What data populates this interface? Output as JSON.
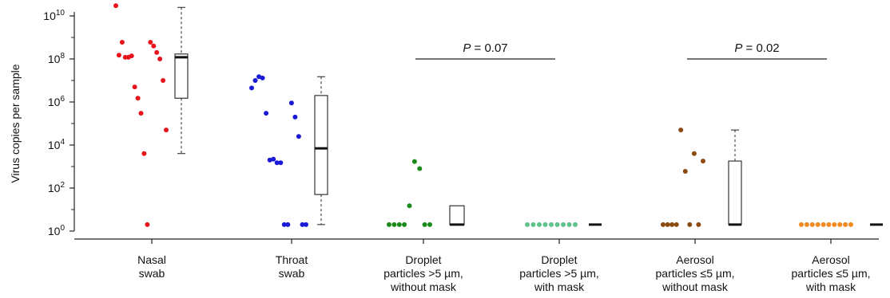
{
  "chart_data": {
    "type": "scatter",
    "ylabel": "Virus copies per sample",
    "yscale": "log10",
    "ylim": [
      1,
      10000000000
    ],
    "yticks": [
      {
        "value": 1,
        "base": "10",
        "exp": "0"
      },
      {
        "value": 100,
        "base": "10",
        "exp": "2"
      },
      {
        "value": 10000,
        "base": "10",
        "exp": "4"
      },
      {
        "value": 1000000,
        "base": "10",
        "exp": "6"
      },
      {
        "value": 100000000,
        "base": "10",
        "exp": "8"
      },
      {
        "value": 10000000000,
        "base": "10",
        "exp": "10"
      }
    ],
    "grid": false,
    "categories": [
      {
        "label_lines": [
          "Nasal",
          "swab"
        ],
        "color": "#e8141c",
        "values": [
          30000000000,
          150000000,
          600000000,
          120000000,
          120000000,
          140000000,
          5000000,
          1500000,
          300000,
          4000,
          2,
          600000000,
          400000000,
          200000000,
          100000000,
          10000000,
          50000
        ],
        "box": {
          "whisker_low": 4000,
          "q1": 1500000,
          "median": 120000000,
          "q3": 170000000,
          "whisker_high": 25000000000
        }
      },
      {
        "label_lines": [
          "Throat",
          "swab"
        ],
        "color": "#1a1ad6",
        "values": [
          4500000,
          10000000,
          15000000,
          13000000,
          300000,
          2000,
          2200,
          1500,
          1500,
          2,
          2,
          900000,
          200000,
          25000,
          2,
          2
        ],
        "box": {
          "whisker_low": 2,
          "q1": 50,
          "median": 7000,
          "q3": 2000000,
          "whisker_high": 15000000
        }
      },
      {
        "label_lines": [
          "Droplet",
          "particles >5 µm,",
          "without mask"
        ],
        "color": "#1b8a1b",
        "values": [
          2,
          2,
          2,
          2,
          15,
          1700,
          800,
          2,
          2
        ],
        "box": {
          "whisker_low": 2,
          "q1": 2,
          "median": 2,
          "q3": 15,
          "whisker_high": 15
        }
      },
      {
        "label_lines": [
          "Droplet",
          "particles >5 µm,",
          "with mask"
        ],
        "color": "#5ec28a",
        "values": [
          2,
          2,
          2,
          2,
          2,
          2,
          2,
          2,
          2
        ],
        "box": {
          "whisker_low": 2,
          "q1": 2,
          "median": 2,
          "q3": 2,
          "whisker_high": 2
        }
      },
      {
        "label_lines": [
          "Aerosol",
          "particles ≤5 µm,",
          "without mask"
        ],
        "color": "#8b4a12",
        "values": [
          2,
          2,
          2,
          2,
          50000,
          600,
          2,
          4000,
          2,
          1800
        ],
        "box": {
          "whisker_low": 2,
          "q1": 2,
          "median": 2,
          "q3": 1800,
          "whisker_high": 50000
        }
      },
      {
        "label_lines": [
          "Aerosol",
          "particles ≤5 µm,",
          "with mask"
        ],
        "color": "#f28a1e",
        "values": [
          2,
          2,
          2,
          2,
          2,
          2,
          2,
          2,
          2,
          2
        ],
        "box": {
          "whisker_low": 2,
          "q1": 2,
          "median": 2,
          "q3": 2,
          "whisker_high": 2
        }
      }
    ],
    "annotations": [
      {
        "between": [
          2,
          3
        ],
        "p_label": "P",
        "p_value": "= 0.07"
      },
      {
        "between": [
          4,
          5
        ],
        "p_label": "P",
        "p_value": "= 0.02"
      }
    ]
  }
}
